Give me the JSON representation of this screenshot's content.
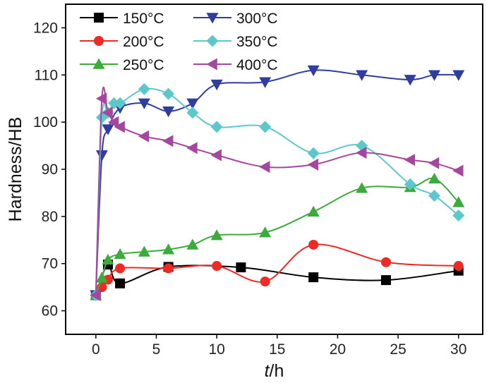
{
  "chart_data": {
    "type": "line",
    "xlabel": "t/h",
    "ylabel": "Hardness/HB",
    "xlim": [
      -2.5,
      32
    ],
    "ylim": [
      55,
      125
    ],
    "xticks": [
      0,
      5,
      10,
      15,
      20,
      25,
      30
    ],
    "yticks": [
      60,
      70,
      80,
      90,
      100,
      110,
      120
    ],
    "grid": false,
    "legend_placement": "top-left",
    "series": [
      {
        "name": "150°C",
        "color": "#000000",
        "marker": "square",
        "x": [
          0,
          1,
          2,
          6,
          12,
          18,
          24,
          30
        ],
        "y": [
          63.3,
          69.8,
          65.8,
          69.3,
          69.2,
          67.1,
          66.5,
          68.5
        ]
      },
      {
        "name": "200°C",
        "color": "#ee2a24",
        "marker": "circle",
        "x": [
          0,
          0.5,
          1,
          2,
          6,
          10,
          14,
          18,
          24,
          30
        ],
        "y": [
          63.3,
          65.0,
          66.6,
          69.0,
          69.0,
          69.5,
          66.2,
          74.0,
          70.3,
          69.5
        ]
      },
      {
        "name": "250°C",
        "color": "#3cab3b",
        "marker": "triangle-up",
        "x": [
          0,
          0.5,
          1,
          2,
          4,
          6,
          8,
          10,
          14,
          18,
          22,
          26,
          28,
          30
        ],
        "y": [
          63.3,
          67.0,
          70.8,
          72.0,
          72.5,
          73.0,
          74.0,
          76.0,
          76.6,
          81.0,
          86.0,
          86.2,
          88.0,
          83.0
        ]
      },
      {
        "name": "300°C",
        "color": "#2f3da0",
        "marker": "triangle-down",
        "x": [
          0,
          0.5,
          1,
          2,
          4,
          6,
          8,
          10,
          14,
          18,
          22,
          26,
          28,
          30
        ],
        "y": [
          63.3,
          93.0,
          98.5,
          103.0,
          104.0,
          102.3,
          104.0,
          108.0,
          108.5,
          111.0,
          110.0,
          109.0,
          110.0,
          110.0
        ]
      },
      {
        "name": "350°C",
        "color": "#5dc8cc",
        "marker": "diamond",
        "x": [
          0,
          0.5,
          1,
          1.5,
          2,
          4,
          6,
          8,
          10,
          14,
          18,
          22,
          26,
          28,
          30
        ],
        "y": [
          63.3,
          101.0,
          102.0,
          104.0,
          104.0,
          107.0,
          106.0,
          102.0,
          99.0,
          99.0,
          93.4,
          95.0,
          86.8,
          84.4,
          80.2
        ]
      },
      {
        "name": "400°C",
        "color": "#a6479f",
        "marker": "triangle-left",
        "x": [
          0,
          0.5,
          1,
          1.5,
          2,
          4,
          6,
          8,
          10,
          14,
          18,
          22,
          26,
          28,
          30
        ],
        "y": [
          63.3,
          105.0,
          102.0,
          100.0,
          99.0,
          97.0,
          96.0,
          94.5,
          93.0,
          90.5,
          91.0,
          93.5,
          92.0,
          91.3,
          89.7
        ]
      }
    ]
  }
}
